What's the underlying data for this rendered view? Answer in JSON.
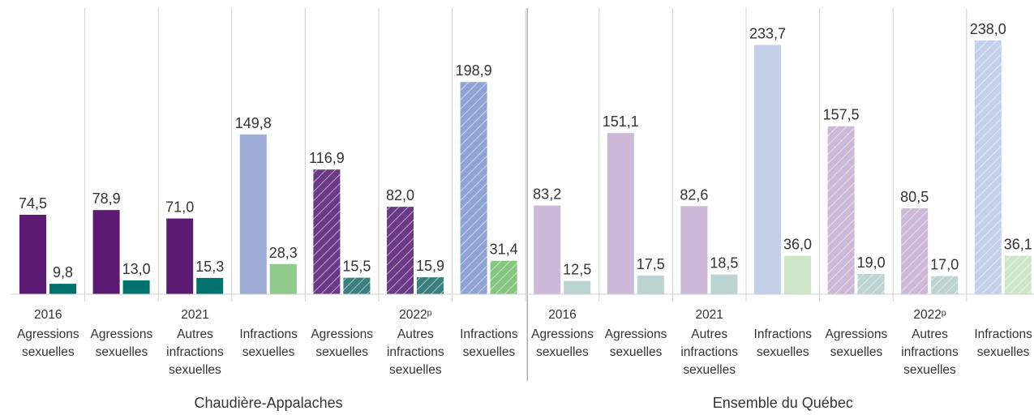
{
  "chart_data": {
    "type": "bar",
    "ylim": [
      0,
      250
    ],
    "regions": [
      {
        "name": "Chaudière-Appalaches",
        "years": [
          {
            "label": "2016",
            "hatched": false,
            "groups": [
              {
                "label": "Agressions sexuelles",
                "values": [
                  74.5,
                  9.8
                ],
                "value_labels": [
                  "74,5",
                  "9,8"
                ],
                "colors": [
                  "#5c1a72",
                  "#00736e"
                ]
              }
            ]
          },
          {
            "label": "2021",
            "hatched": false,
            "groups": [
              {
                "label": "Agressions sexuelles",
                "values": [
                  78.9,
                  13.0
                ],
                "value_labels": [
                  "78,9",
                  "13,0"
                ],
                "colors": [
                  "#5c1a72",
                  "#00736e"
                ]
              },
              {
                "label": "Autres infractions sexuelles",
                "values": [
                  71.0,
                  15.3
                ],
                "value_labels": [
                  "71,0",
                  "15,3"
                ],
                "colors": [
                  "#5c1a72",
                  "#00736e"
                ]
              },
              {
                "label": "Infractions sexuelles",
                "values": [
                  149.8,
                  28.3
                ],
                "value_labels": [
                  "149,8",
                  "28,3"
                ],
                "colors": [
                  "#9dadd6",
                  "#8fc98c"
                ]
              }
            ]
          },
          {
            "label": "2022ᵖ",
            "hatched": true,
            "groups": [
              {
                "label": "Agressions sexuelles",
                "values": [
                  116.9,
                  15.5
                ],
                "value_labels": [
                  "116,9",
                  "15,5"
                ],
                "colors": [
                  "#6a3a86",
                  "#3a7f7d"
                ]
              },
              {
                "label": "Autres infractions sexuelles",
                "values": [
                  82.0,
                  15.9
                ],
                "value_labels": [
                  "82,0",
                  "15,9"
                ],
                "colors": [
                  "#6a3a86",
                  "#3a7f7d"
                ]
              },
              {
                "label": "Infractions sexuelles",
                "values": [
                  198.9,
                  31.4
                ],
                "value_labels": [
                  "198,9",
                  "31,4"
                ],
                "colors": [
                  "#8fa3d4",
                  "#86c680"
                ]
              }
            ]
          }
        ]
      },
      {
        "name": "Ensemble du Québec",
        "years": [
          {
            "label": "2016",
            "hatched": false,
            "groups": [
              {
                "label": "Agressions sexuelles",
                "values": [
                  83.2,
                  12.5
                ],
                "value_labels": [
                  "83,2",
                  "12,5"
                ],
                "colors": [
                  "#cdb8d8",
                  "#bcd3d3"
                ]
              }
            ]
          },
          {
            "label": "2021",
            "hatched": false,
            "groups": [
              {
                "label": "Agressions sexuelles",
                "values": [
                  151.1,
                  17.5
                ],
                "value_labels": [
                  "151,1",
                  "17,5"
                ],
                "colors": [
                  "#cdb8d8",
                  "#bcd3d3"
                ]
              },
              {
                "label": "Autres infractions sexuelles",
                "values": [
                  82.6,
                  18.5
                ],
                "value_labels": [
                  "82,6",
                  "18,5"
                ],
                "colors": [
                  "#cdb8d8",
                  "#bcd3d3"
                ]
              },
              {
                "label": "Infractions sexuelles",
                "values": [
                  233.7,
                  36.0
                ],
                "value_labels": [
                  "233,7",
                  "36,0"
                ],
                "colors": [
                  "#c4cfe9",
                  "#cce6c7"
                ]
              }
            ]
          },
          {
            "label": "2022ᵖ",
            "hatched": true,
            "groups": [
              {
                "label": "Agressions sexuelles",
                "values": [
                  157.5,
                  19.0
                ],
                "value_labels": [
                  "157,5",
                  "19,0"
                ],
                "colors": [
                  "#cdb8d8",
                  "#bcd3d3"
                ]
              },
              {
                "label": "Autres infractions sexuelles",
                "values": [
                  80.5,
                  17.0
                ],
                "value_labels": [
                  "80,5",
                  "17,0"
                ],
                "colors": [
                  "#cdb8d8",
                  "#bcd3d3"
                ]
              },
              {
                "label": "Infractions sexuelles",
                "values": [
                  238.0,
                  36.1
                ],
                "value_labels": [
                  "238,0",
                  "36,1"
                ],
                "colors": [
                  "#c4cfe9",
                  "#cce6c7"
                ]
              }
            ]
          }
        ]
      }
    ]
  }
}
